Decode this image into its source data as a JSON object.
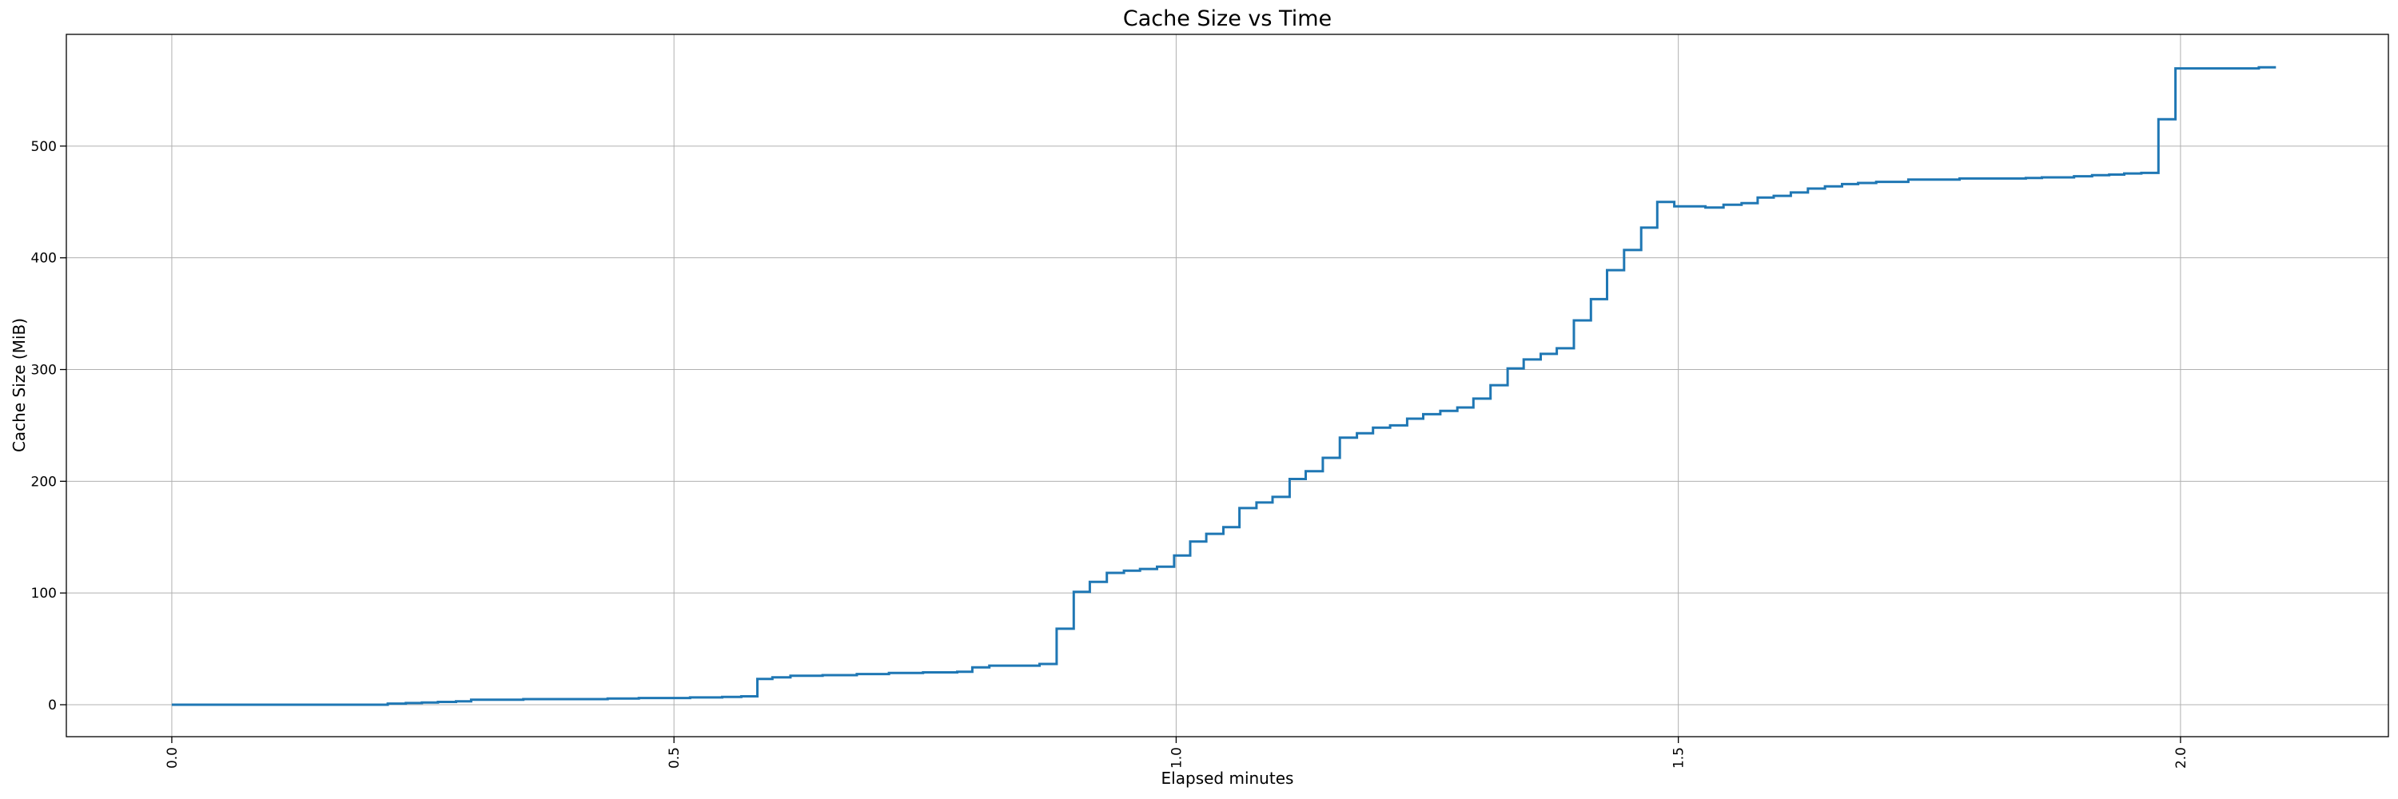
{
  "chart_data": {
    "type": "line",
    "step": "post",
    "title": "Cache Size vs Time",
    "xlabel": "Elapsed minutes",
    "ylabel": "Cache Size (MiB)",
    "x_ticks": [
      0.0,
      0.5,
      1.0,
      1.5,
      2.0
    ],
    "x_tick_labels": [
      "0.0",
      "0.5",
      "1.0",
      "1.5",
      "2.0"
    ],
    "y_ticks": [
      0,
      100,
      200,
      300,
      400,
      500
    ],
    "y_tick_labels": [
      "0",
      "100",
      "200",
      "300",
      "400",
      "500"
    ],
    "xlim": [
      -0.105,
      2.207
    ],
    "ylim": [
      -28.6,
      600
    ],
    "grid": true,
    "legend": false,
    "line_color": "#1f77b4",
    "grid_color": "#b0b0b0",
    "spine_color": "#000000",
    "points": [
      [
        0.0,
        0
      ],
      [
        0.215,
        1
      ],
      [
        0.233,
        1.5
      ],
      [
        0.249,
        2
      ],
      [
        0.265,
        2.5
      ],
      [
        0.283,
        3
      ],
      [
        0.298,
        4.5
      ],
      [
        0.35,
        5
      ],
      [
        0.434,
        5.5
      ],
      [
        0.465,
        6
      ],
      [
        0.516,
        6.5
      ],
      [
        0.548,
        7
      ],
      [
        0.567,
        7.5
      ],
      [
        0.583,
        23
      ],
      [
        0.598,
        24.5
      ],
      [
        0.616,
        26
      ],
      [
        0.648,
        26.5
      ],
      [
        0.682,
        27.5
      ],
      [
        0.714,
        28.5
      ],
      [
        0.748,
        29
      ],
      [
        0.782,
        29.5
      ],
      [
        0.797,
        33.5
      ],
      [
        0.814,
        35
      ],
      [
        0.864,
        36.5
      ],
      [
        0.881,
        68
      ],
      [
        0.898,
        101
      ],
      [
        0.914,
        110
      ],
      [
        0.931,
        118
      ],
      [
        0.948,
        120
      ],
      [
        0.964,
        121.5
      ],
      [
        0.981,
        123.5
      ],
      [
        0.998,
        133.5
      ],
      [
        1.014,
        146
      ],
      [
        1.03,
        153
      ],
      [
        1.047,
        159
      ],
      [
        1.063,
        176
      ],
      [
        1.08,
        181
      ],
      [
        1.096,
        186
      ],
      [
        1.113,
        202
      ],
      [
        1.129,
        209
      ],
      [
        1.146,
        221
      ],
      [
        1.163,
        239
      ],
      [
        1.18,
        243
      ],
      [
        1.196,
        248
      ],
      [
        1.213,
        250
      ],
      [
        1.23,
        256
      ],
      [
        1.246,
        260
      ],
      [
        1.263,
        263
      ],
      [
        1.28,
        266
      ],
      [
        1.296,
        274
      ],
      [
        1.313,
        286
      ],
      [
        1.33,
        301
      ],
      [
        1.346,
        309
      ],
      [
        1.363,
        314
      ],
      [
        1.379,
        319
      ],
      [
        1.396,
        344
      ],
      [
        1.413,
        363
      ],
      [
        1.429,
        389
      ],
      [
        1.446,
        407
      ],
      [
        1.463,
        427
      ],
      [
        1.479,
        450
      ],
      [
        1.496,
        446
      ],
      [
        1.527,
        445
      ],
      [
        1.545,
        447.5
      ],
      [
        1.563,
        449
      ],
      [
        1.579,
        454
      ],
      [
        1.595,
        455.5
      ],
      [
        1.612,
        458.5
      ],
      [
        1.629,
        462
      ],
      [
        1.646,
        464
      ],
      [
        1.663,
        466
      ],
      [
        1.679,
        467
      ],
      [
        1.697,
        468
      ],
      [
        1.729,
        470
      ],
      [
        1.78,
        471
      ],
      [
        1.846,
        471.5
      ],
      [
        1.862,
        472
      ],
      [
        1.894,
        473
      ],
      [
        1.912,
        474
      ],
      [
        1.929,
        474.5
      ],
      [
        1.944,
        475.5
      ],
      [
        1.961,
        476
      ],
      [
        1.978,
        524
      ],
      [
        1.995,
        569.5
      ],
      [
        2.078,
        570.5
      ],
      [
        2.095,
        570.5
      ]
    ]
  }
}
